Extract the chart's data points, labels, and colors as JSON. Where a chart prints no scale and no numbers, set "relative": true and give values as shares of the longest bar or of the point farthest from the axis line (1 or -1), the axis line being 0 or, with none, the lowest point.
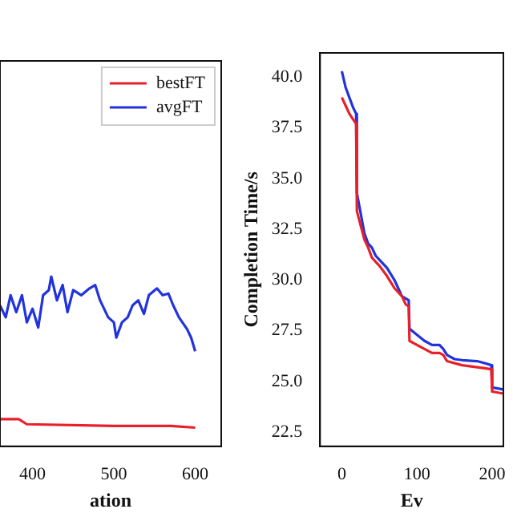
{
  "chart_data": [
    {
      "type": "line",
      "relative": true,
      "xlabel": "ation",
      "xlim": [
        360,
        632
      ],
      "xticks": [
        400,
        500,
        600
      ],
      "legend": "top right",
      "grid": false,
      "series": [
        {
          "name": "bestFT",
          "color": "#e8202a",
          "x": [
            360,
            383,
            393,
            500,
            570,
            600
          ],
          "values": [
            0.16,
            0.16,
            0.13,
            0.12,
            0.12,
            0.11
          ]
        },
        {
          "name": "avgFT",
          "color": "#2233dd",
          "x": [
            360,
            367,
            373,
            380,
            387,
            393,
            400,
            407,
            413,
            420,
            423,
            430,
            437,
            443,
            450,
            460,
            470,
            477,
            483,
            493,
            500,
            503,
            510,
            517,
            523,
            530,
            537,
            543,
            553,
            560,
            567,
            573,
            580,
            590,
            595,
            600
          ],
          "values": [
            0.83,
            0.76,
            0.89,
            0.79,
            0.89,
            0.73,
            0.81,
            0.7,
            0.89,
            0.92,
            1.0,
            0.86,
            0.95,
            0.79,
            0.92,
            0.89,
            0.93,
            0.95,
            0.86,
            0.76,
            0.73,
            0.64,
            0.73,
            0.76,
            0.83,
            0.86,
            0.78,
            0.89,
            0.93,
            0.89,
            0.9,
            0.83,
            0.76,
            0.69,
            0.64,
            0.56
          ]
        }
      ]
    },
    {
      "type": "line",
      "ylabel": "Completion Time/s",
      "xlabel": "Ev",
      "xlim": [
        -29,
        215
      ],
      "xticks": [
        0,
        100,
        200
      ],
      "ylim": [
        21.8,
        41.2
      ],
      "yticks": [
        22.5,
        {
          "value": 25,
          "label": "25.0"
        },
        27.5,
        {
          "value": 30,
          "label": "30.0"
        },
        32.5,
        {
          "value": 35,
          "label": "35.0"
        },
        37.5,
        {
          "value": 40,
          "label": "40.0"
        }
      ],
      "legend": false,
      "grid": false,
      "series": [
        {
          "color": "#e8202a",
          "x": [
            0,
            5,
            10,
            19,
            20,
            25,
            30,
            35,
            40,
            50,
            60,
            70,
            80,
            85,
            89,
            90,
            100,
            110,
            120,
            130,
            135,
            140,
            160,
            180,
            199,
            200,
            215
          ],
          "values": [
            39.0,
            38.6,
            38.2,
            37.7,
            33.4,
            32.7,
            32.0,
            31.6,
            31.1,
            30.7,
            30.2,
            29.6,
            29.2,
            28.8,
            28.7,
            27.0,
            26.8,
            26.6,
            26.4,
            26.4,
            26.3,
            26.0,
            25.8,
            25.7,
            25.6,
            24.5,
            24.4
          ]
        },
        {
          "color": "#2233dd",
          "x": [
            0,
            5,
            10,
            15,
            19,
            20,
            25,
            30,
            35,
            40,
            45,
            50,
            55,
            60,
            70,
            75,
            80,
            89,
            90,
            100,
            110,
            120,
            130,
            135,
            140,
            150,
            160,
            180,
            190,
            199,
            200,
            215
          ],
          "values": [
            40.3,
            39.5,
            39.0,
            38.5,
            38.2,
            34.3,
            33.3,
            32.3,
            31.8,
            31.6,
            31.2,
            31.0,
            30.8,
            30.6,
            30.0,
            29.6,
            29.2,
            29.0,
            27.6,
            27.3,
            27.0,
            26.8,
            26.8,
            26.6,
            26.3,
            26.1,
            26.05,
            26.0,
            25.9,
            25.8,
            24.7,
            24.6
          ]
        }
      ]
    }
  ]
}
